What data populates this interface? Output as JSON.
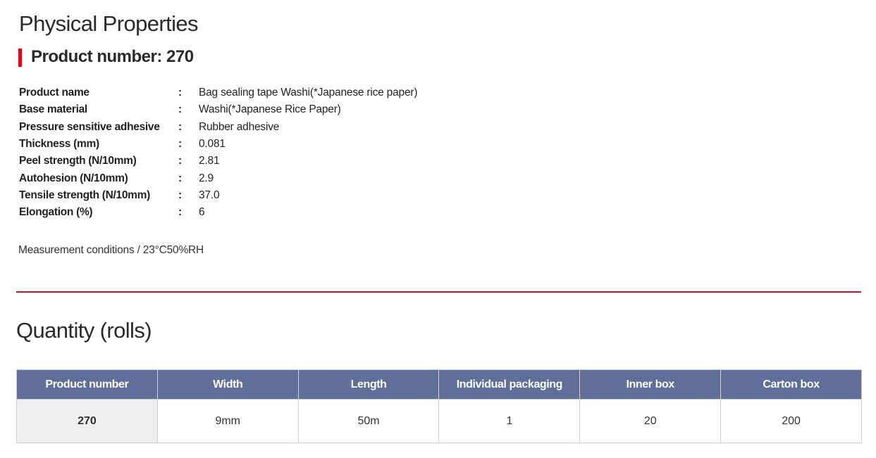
{
  "colors": {
    "accent_red": "#e60012",
    "rule_red": "#b01c2e",
    "table_header": "#5f6f99"
  },
  "physical": {
    "title": "Physical Properties",
    "subtitle": "Product number: 270",
    "separator": ":",
    "rows": [
      {
        "label": "Product name",
        "value": "Bag sealing tape Washi(*Japanese rice paper)"
      },
      {
        "label": "Base material",
        "value": "Washi(*Japanese Rice Paper)"
      },
      {
        "label": "Pressure sensitive adhesive",
        "value": "Rubber adhesive"
      },
      {
        "label": "Thickness (mm)",
        "value": "0.081"
      },
      {
        "label": "Peel strength (N/10mm)",
        "value": "2.81"
      },
      {
        "label": "Autohesion (N/10mm)",
        "value": "2.9"
      },
      {
        "label": "Tensile strength (N/10mm)",
        "value": "37.0"
      },
      {
        "label": "Elongation (%)",
        "value": "6"
      }
    ],
    "conditions": "Measurement conditions / 23°C50%RH"
  },
  "quantity": {
    "title": "Quantity (rolls)",
    "headers": [
      "Product number",
      "Width",
      "Length",
      "Individual packaging",
      "Inner box",
      "Carton box"
    ],
    "rows": [
      [
        "270",
        "9mm",
        "50m",
        "1",
        "20",
        "200"
      ]
    ]
  }
}
